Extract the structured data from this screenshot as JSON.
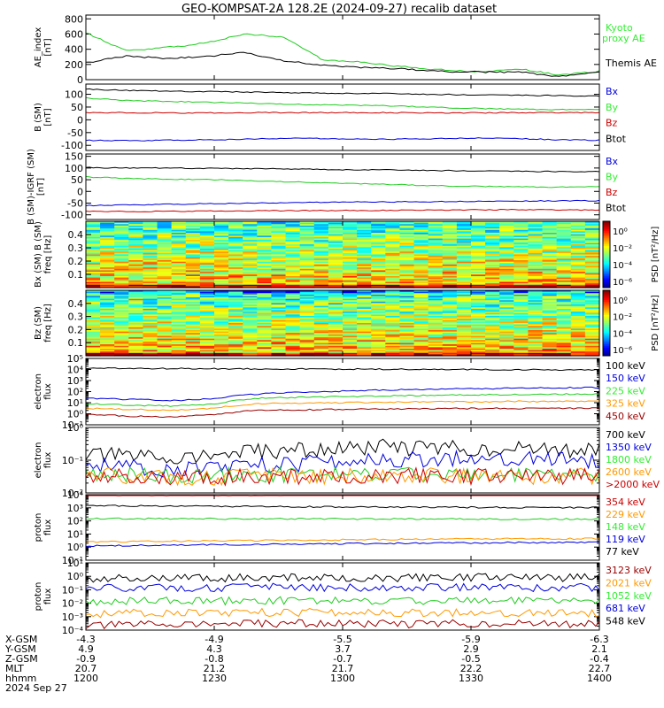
{
  "title": "GEO-KOMPSAT-2A 128.2E (2024-09-27) recalib dataset",
  "time_axis": {
    "ticks": [
      "1200",
      "1230",
      "1300",
      "1330",
      "1400"
    ],
    "rows": [
      {
        "label": "X-GSM",
        "values": [
          "-4.3",
          "-4.9",
          "-5.5",
          "-5.9",
          "-6.3"
        ]
      },
      {
        "label": "Y-GSM",
        "values": [
          "4.9",
          "4.3",
          "3.7",
          "2.9",
          "2.1"
        ]
      },
      {
        "label": "Z-GSM",
        "values": [
          "-0.9",
          "-0.8",
          "-0.7",
          "-0.5",
          "-0.4"
        ]
      },
      {
        "label": "MLT",
        "values": [
          "20.7",
          "21.2",
          "21.7",
          "22.2",
          "22.7"
        ]
      },
      {
        "label": "hhmm",
        "values": [
          "1200",
          "1230",
          "1300",
          "1330",
          "1400"
        ]
      }
    ],
    "date": "2024 Sep 27"
  },
  "colors": {
    "black": "#000000",
    "blue": "#0000dd",
    "green": "#22cc22",
    "red": "#cc0000",
    "orange": "#ff9900",
    "darkred": "#990000",
    "bright_green": "#33ee33"
  },
  "chart_data": [
    {
      "type": "line",
      "panel": "AE",
      "ylabel": "AE_index [nT]",
      "ylim": [
        0,
        850
      ],
      "yticks": [
        "0",
        "200",
        "400",
        "600",
        "800"
      ],
      "x": [
        "1200",
        "1210",
        "1220",
        "1230",
        "1235",
        "1240",
        "1250",
        "1300",
        "1310",
        "1320",
        "1330",
        "1340",
        "1350",
        "1400"
      ],
      "series": [
        {
          "name": "Kyoto proxy AE",
          "color": "green",
          "values": [
            620,
            380,
            420,
            480,
            600,
            560,
            260,
            230,
            170,
            130,
            100,
            140,
            60,
            110
          ]
        },
        {
          "name": "Themis AE",
          "color": "black",
          "values": [
            220,
            310,
            280,
            300,
            360,
            250,
            190,
            160,
            140,
            110,
            100,
            100,
            40,
            100
          ]
        }
      ]
    },
    {
      "type": "line",
      "panel": "B_SM",
      "ylabel": "B (SM) [nT]",
      "ylim": [
        -120,
        140
      ],
      "yticks": [
        "100",
        "50",
        "0",
        "-50",
        "-100"
      ],
      "series": [
        {
          "name": "Bx",
          "color": "blue",
          "values": [
            -80,
            -82,
            -80,
            -78,
            -75,
            -72,
            -75,
            -76,
            -74,
            -72,
            -73,
            -78,
            -80
          ]
        },
        {
          "name": "By",
          "color": "green",
          "values": [
            85,
            75,
            72,
            68,
            65,
            60,
            58,
            55,
            50,
            45,
            42,
            40,
            40
          ]
        },
        {
          "name": "Bz",
          "color": "red",
          "values": [
            28,
            28,
            27,
            27,
            28,
            28,
            28,
            28,
            27,
            27,
            28,
            28,
            28
          ]
        },
        {
          "name": "Btot",
          "color": "black",
          "values": [
            120,
            115,
            112,
            110,
            108,
            105,
            104,
            103,
            100,
            98,
            96,
            95,
            93
          ]
        }
      ]
    },
    {
      "type": "line",
      "panel": "B_SM_IGRF",
      "ylabel": "B (SM)-IGRF (SM) [nT]",
      "ylim": [
        -120,
        160
      ],
      "yticks": [
        "150",
        "100",
        "50",
        "0",
        "-50",
        "-100"
      ],
      "series": [
        {
          "name": "Bx",
          "color": "blue",
          "values": [
            -60,
            -58,
            -55,
            -52,
            -50,
            -48,
            -45,
            -45,
            -44,
            -43,
            -42,
            -40,
            -40
          ]
        },
        {
          "name": "By",
          "color": "green",
          "values": [
            62,
            55,
            52,
            50,
            45,
            40,
            35,
            30,
            25,
            22,
            20,
            18,
            20
          ]
        },
        {
          "name": "Bz",
          "color": "red",
          "values": [
            -85,
            -86,
            -85,
            -84,
            -83,
            -82,
            -82,
            -81,
            -80,
            -79,
            -78,
            -79,
            -80
          ]
        },
        {
          "name": "Btot",
          "color": "black",
          "values": [
            102,
            100,
            100,
            98,
            97,
            95,
            93,
            92,
            90,
            88,
            86,
            85,
            85
          ]
        }
      ]
    },
    {
      "type": "heatmap",
      "panel": "Bx_spec",
      "ylabel": "Bx (SM) freq [Hz]",
      "yticks": [
        "0.4",
        "0.3",
        "0.2",
        "0.1"
      ],
      "colorbar_label": "PSD [nT²/Hz]",
      "colorbar_ticks": [
        "10⁰",
        "10⁻²",
        "10⁻⁴",
        "10⁻⁶"
      ]
    },
    {
      "type": "heatmap",
      "panel": "Bz_spec",
      "ylabel": "Bz (SM) freq [Hz]",
      "yticks": [
        "0.4",
        "0.3",
        "0.2",
        "0.1"
      ],
      "colorbar_label": "PSD [nT²/Hz]",
      "colorbar_ticks": [
        "10⁰",
        "10⁻²",
        "10⁻⁴",
        "10⁻⁶"
      ]
    },
    {
      "type": "line",
      "panel": "electron_low",
      "ylabel": "electron flux",
      "yscale": "log",
      "ylim_exp": [
        -1,
        5
      ],
      "yticks": [
        "10⁻¹",
        "10⁰",
        "10¹",
        "10²",
        "10³",
        "10⁴",
        "10⁵"
      ],
      "series": [
        {
          "name": "100 keV",
          "color": "black",
          "values": [
            13000,
            12500,
            12000,
            11800,
            11500,
            11000,
            10800,
            10500,
            10000,
            9800,
            9500,
            9200,
            9000
          ]
        },
        {
          "name": "150 keV",
          "color": "blue",
          "values": [
            25,
            20,
            15,
            22,
            60,
            90,
            110,
            140,
            160,
            180,
            200,
            220,
            230
          ]
        },
        {
          "name": "225 keV",
          "color": "green",
          "values": [
            8,
            6,
            5,
            7,
            25,
            30,
            35,
            40,
            45,
            50,
            55,
            58,
            60
          ]
        },
        {
          "name": "325 keV",
          "color": "orange",
          "values": [
            3,
            2.5,
            2,
            3,
            8,
            9,
            10,
            11,
            12,
            12,
            13,
            13,
            13
          ]
        },
        {
          "name": "450 keV",
          "color": "darkred",
          "values": [
            0.9,
            0.6,
            0.5,
            0.8,
            2,
            2.2,
            2.5,
            2.6,
            2.8,
            3,
            3,
            3.1,
            3.1
          ]
        }
      ]
    },
    {
      "type": "line",
      "panel": "electron_high",
      "ylabel": "electron flux",
      "yscale": "log",
      "ylim_exp": [
        -2,
        0
      ],
      "yticks": [
        "10⁻²",
        "10⁻¹",
        "10⁰"
      ],
      "series": [
        {
          "name": "700 keV",
          "color": "black",
          "values": [
            0.15,
            0.13,
            0.12,
            0.14,
            0.18,
            0.2,
            0.22,
            0.25,
            0.24,
            0.23,
            0.22,
            0.2,
            0.21
          ]
        },
        {
          "name": "1350 keV",
          "color": "blue",
          "values": [
            0.08,
            0.06,
            0.05,
            0.06,
            0.07,
            0.08,
            0.09,
            0.1,
            0.11,
            0.12,
            0.12,
            0.11,
            0.1
          ]
        },
        {
          "name": "1800 keV",
          "color": "green",
          "values": [
            0.04,
            0.035,
            0.03,
            0.032,
            0.035,
            0.036,
            0.037,
            0.038,
            0.036,
            0.035,
            0.034,
            0.033,
            0.033
          ]
        },
        {
          "name": "2600 keV",
          "color": "orange",
          "values": [
            0.035,
            0.032,
            0.03,
            0.03,
            0.032,
            0.033,
            0.034,
            0.035,
            0.034,
            0.033,
            0.032,
            0.032,
            0.032
          ]
        },
        {
          "name": ">2000 keV",
          "color": "red",
          "values": [
            0.033,
            0.03,
            0.029,
            0.03,
            0.031,
            0.032,
            0.033,
            0.034,
            0.033,
            0.032,
            0.031,
            0.031,
            0.031
          ]
        }
      ]
    },
    {
      "type": "line",
      "panel": "proton_low",
      "ylabel": "proton flux",
      "yscale": "log",
      "ylim_exp": [
        -1,
        4
      ],
      "yticks": [
        "10⁻¹",
        "10⁰",
        "10¹",
        "10²",
        "10³",
        "10⁴"
      ],
      "series": [
        {
          "name": "354 keV",
          "color": "red",
          "values": [
            9000,
            9200,
            9300,
            9400,
            9500,
            9500,
            9600,
            9600,
            9700,
            9700,
            9800,
            9800,
            9800
          ]
        },
        {
          "name": "229 keV",
          "color": "orange",
          "values": [
            2.5,
            2.6,
            2.8,
            3,
            3.2,
            3.4,
            3.6,
            3.8,
            4,
            4.2,
            4.3,
            4.3,
            4.4
          ]
        },
        {
          "name": "148 keV",
          "color": "green",
          "values": [
            150,
            148,
            146,
            145,
            144,
            143,
            142,
            141,
            140,
            139,
            138,
            138,
            137
          ]
        },
        {
          "name": "119 keV",
          "color": "blue",
          "values": [
            1.2,
            1.3,
            1.4,
            1.5,
            1.6,
            1.7,
            1.8,
            1.9,
            2,
            2.1,
            2.2,
            2.2,
            2.3
          ]
        },
        {
          "name": "77 keV",
          "color": "black",
          "values": [
            1500,
            1400,
            1350,
            1300,
            1250,
            1200,
            1150,
            1100,
            1100,
            1080,
            1050,
            1040,
            1030
          ]
        }
      ]
    },
    {
      "type": "line",
      "panel": "proton_high",
      "ylabel": "proton flux",
      "yscale": "log",
      "ylim_exp": [
        -4,
        1
      ],
      "yticks": [
        "10⁻⁴",
        "10⁻³",
        "10⁻²",
        "10⁻¹",
        "10⁰",
        "10¹"
      ],
      "series": [
        {
          "name": "3123 keV",
          "color": "darkred",
          "values": [
            0.0002,
            0.00025,
            0.0003,
            0.00028,
            0.0003,
            0.00032,
            0.0003,
            0.00028,
            0.0003,
            0.00032,
            0.0003,
            0.00028,
            0.0003
          ]
        },
        {
          "name": "2021 keV",
          "color": "orange",
          "values": [
            0.0015,
            0.0018,
            0.002,
            0.0019,
            0.002,
            0.0021,
            0.002,
            0.0019,
            0.002,
            0.0021,
            0.002,
            0.0019,
            0.002
          ]
        },
        {
          "name": "1052 keV",
          "color": "green",
          "values": [
            0.012,
            0.014,
            0.015,
            0.014,
            0.015,
            0.016,
            0.015,
            0.014,
            0.015,
            0.016,
            0.015,
            0.014,
            0.015
          ]
        },
        {
          "name": "681 keV",
          "color": "blue",
          "values": [
            0.12,
            0.14,
            0.15,
            0.14,
            0.15,
            0.16,
            0.15,
            0.14,
            0.15,
            0.16,
            0.15,
            0.14,
            0.15
          ]
        },
        {
          "name": "548 keV",
          "color": "black",
          "values": [
            0.6,
            0.7,
            0.8,
            0.75,
            0.8,
            0.85,
            0.8,
            0.75,
            0.8,
            0.85,
            0.8,
            0.75,
            0.8
          ]
        }
      ]
    }
  ]
}
